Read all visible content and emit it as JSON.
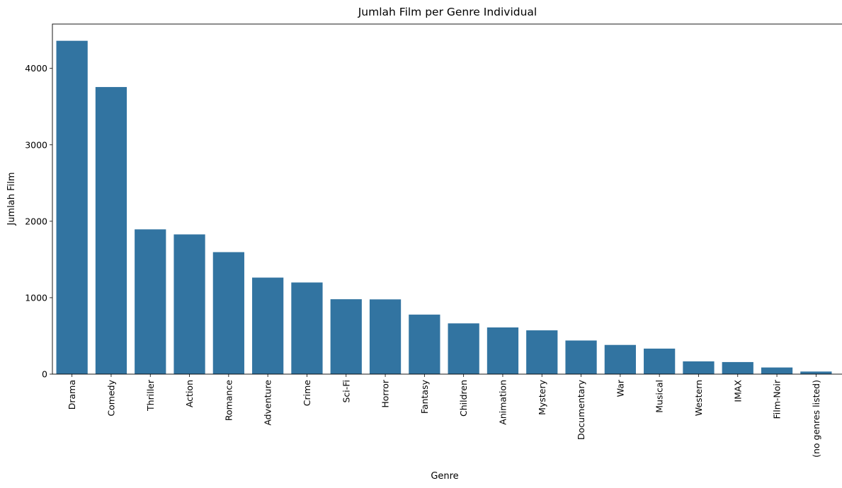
{
  "chart_data": {
    "type": "bar",
    "title": "Jumlah Film per Genre Individual",
    "xlabel": "Genre",
    "ylabel": "Jumlah Film",
    "categories": [
      "Drama",
      "Comedy",
      "Thriller",
      "Action",
      "Romance",
      "Adventure",
      "Crime",
      "Sci-Fi",
      "Horror",
      "Fantasy",
      "Children",
      "Animation",
      "Mystery",
      "Documentary",
      "War",
      "Musical",
      "Western",
      "IMAX",
      "Film-Noir",
      "(no genres listed)"
    ],
    "values": [
      4361,
      3756,
      1894,
      1828,
      1596,
      1263,
      1199,
      980,
      978,
      779,
      664,
      611,
      573,
      440,
      382,
      334,
      167,
      158,
      87,
      34
    ],
    "yticks": [
      0,
      1000,
      2000,
      3000,
      4000
    ],
    "ylim": [
      0,
      4580
    ],
    "grid": false,
    "bar_color": "#3274a1"
  }
}
